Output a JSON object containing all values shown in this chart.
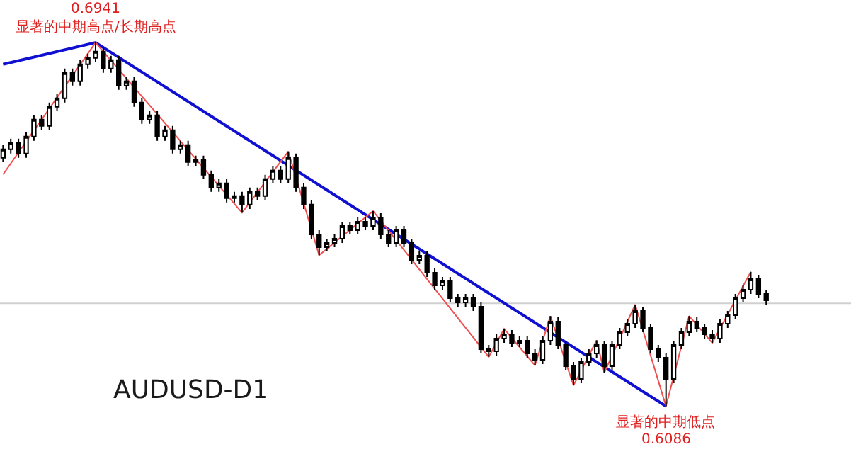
{
  "chart_data": {
    "type": "candlestick",
    "categories": [
      null,
      null,
      null,
      null,
      null,
      null,
      null,
      null,
      null,
      null,
      null,
      null,
      null,
      null,
      null,
      null,
      null,
      null,
      null,
      null,
      null,
      null,
      null,
      null,
      null,
      null,
      null,
      null,
      null,
      null,
      null,
      null,
      null,
      null,
      null,
      null,
      null,
      null,
      null,
      null,
      null,
      null,
      null,
      null,
      null,
      null,
      null,
      null,
      null,
      null,
      null,
      null,
      null,
      null,
      null,
      null,
      null,
      null,
      null,
      null,
      null,
      null,
      null,
      null,
      null,
      null,
      null,
      null,
      null,
      null,
      null,
      null,
      null,
      null,
      null,
      null,
      null,
      null,
      null,
      null,
      null,
      null,
      null,
      null,
      null,
      null,
      null,
      null,
      null,
      null,
      null,
      null,
      null,
      null,
      null,
      null,
      null,
      null,
      null,
      null
    ],
    "ylim": [
      0.5962,
      0.7041
    ],
    "tick_labels": false,
    "series": [
      {
        "color": "#000000",
        "ohlc": [
          [
            0.667,
            0.67,
            0.666,
            0.669
          ],
          [
            0.669,
            0.6715,
            0.668,
            0.6705
          ],
          [
            0.6705,
            0.6715,
            0.667,
            0.668
          ],
          [
            0.668,
            0.673,
            0.667,
            0.672
          ],
          [
            0.672,
            0.677,
            0.671,
            0.676
          ],
          [
            0.676,
            0.677,
            0.6735,
            0.6745
          ],
          [
            0.6745,
            0.68,
            0.6735,
            0.679
          ],
          [
            0.679,
            0.682,
            0.678,
            0.681
          ],
          [
            0.681,
            0.688,
            0.68,
            0.687
          ],
          [
            0.687,
            0.688,
            0.684,
            0.685
          ],
          [
            0.685,
            0.69,
            0.684,
            0.689
          ],
          [
            0.689,
            0.6915,
            0.688,
            0.6905
          ],
          [
            0.6905,
            0.6941,
            0.6895,
            0.692
          ],
          [
            0.692,
            0.693,
            0.687,
            0.688
          ],
          [
            0.688,
            0.691,
            0.687,
            0.69
          ],
          [
            0.69,
            0.691,
            0.683,
            0.684
          ],
          [
            0.684,
            0.686,
            0.683,
            0.685
          ],
          [
            0.685,
            0.686,
            0.679,
            0.68
          ],
          [
            0.68,
            0.681,
            0.675,
            0.676
          ],
          [
            0.676,
            0.678,
            0.675,
            0.677
          ],
          [
            0.677,
            0.678,
            0.671,
            0.672
          ],
          [
            0.672,
            0.6745,
            0.671,
            0.6735
          ],
          [
            0.6735,
            0.6745,
            0.668,
            0.669
          ],
          [
            0.669,
            0.671,
            0.668,
            0.67
          ],
          [
            0.67,
            0.671,
            0.665,
            0.666
          ],
          [
            0.666,
            0.6675,
            0.665,
            0.6665
          ],
          [
            0.6665,
            0.6675,
            0.662,
            0.663
          ],
          [
            0.663,
            0.664,
            0.659,
            0.66
          ],
          [
            0.66,
            0.662,
            0.659,
            0.661
          ],
          [
            0.661,
            0.662,
            0.6565,
            0.6575
          ],
          [
            0.6575,
            0.659,
            0.6565,
            0.658
          ],
          [
            0.658,
            0.659,
            0.6541,
            0.656
          ],
          [
            0.656,
            0.66,
            0.655,
            0.659
          ],
          [
            0.659,
            0.66,
            0.657,
            0.658
          ],
          [
            0.658,
            0.663,
            0.657,
            0.662
          ],
          [
            0.662,
            0.665,
            0.661,
            0.664
          ],
          [
            0.664,
            0.665,
            0.661,
            0.662
          ],
          [
            0.662,
            0.6685,
            0.661,
            0.667
          ],
          [
            0.667,
            0.668,
            0.659,
            0.66
          ],
          [
            0.66,
            0.661,
            0.655,
            0.656
          ],
          [
            0.656,
            0.657,
            0.648,
            0.649
          ],
          [
            0.649,
            0.65,
            0.6441,
            0.646
          ],
          [
            0.646,
            0.648,
            0.645,
            0.647
          ],
          [
            0.647,
            0.649,
            0.646,
            0.648
          ],
          [
            0.648,
            0.652,
            0.647,
            0.651
          ],
          [
            0.651,
            0.652,
            0.649,
            0.65
          ],
          [
            0.65,
            0.653,
            0.649,
            0.652
          ],
          [
            0.652,
            0.653,
            0.65,
            0.651
          ],
          [
            0.651,
            0.6545,
            0.65,
            0.653
          ],
          [
            0.653,
            0.654,
            0.648,
            0.649
          ],
          [
            0.649,
            0.65,
            0.646,
            0.647
          ],
          [
            0.647,
            0.651,
            0.646,
            0.65
          ],
          [
            0.65,
            0.651,
            0.646,
            0.647
          ],
          [
            0.647,
            0.648,
            0.642,
            0.643
          ],
          [
            0.643,
            0.645,
            0.642,
            0.644
          ],
          [
            0.644,
            0.645,
            0.639,
            0.64
          ],
          [
            0.64,
            0.641,
            0.636,
            0.637
          ],
          [
            0.637,
            0.639,
            0.636,
            0.638
          ],
          [
            0.638,
            0.639,
            0.633,
            0.634
          ],
          [
            0.634,
            0.635,
            0.632,
            0.633
          ],
          [
            0.633,
            0.635,
            0.632,
            0.634
          ],
          [
            0.634,
            0.635,
            0.631,
            0.632
          ],
          [
            0.632,
            0.633,
            0.621,
            0.622
          ],
          [
            0.622,
            0.623,
            0.6202,
            0.6215
          ],
          [
            0.6215,
            0.6255,
            0.6205,
            0.6245
          ],
          [
            0.6245,
            0.6268,
            0.6235,
            0.6255
          ],
          [
            0.6255,
            0.6265,
            0.6225,
            0.6235
          ],
          [
            0.6235,
            0.625,
            0.6225,
            0.624
          ],
          [
            0.624,
            0.625,
            0.62,
            0.621
          ],
          [
            0.621,
            0.622,
            0.6182,
            0.6195
          ],
          [
            0.6195,
            0.625,
            0.6185,
            0.624
          ],
          [
            0.624,
            0.6298,
            0.623,
            0.6285
          ],
          [
            0.6285,
            0.6295,
            0.622,
            0.623
          ],
          [
            0.623,
            0.624,
            0.617,
            0.618
          ],
          [
            0.618,
            0.619,
            0.6135,
            0.615
          ],
          [
            0.615,
            0.62,
            0.614,
            0.619
          ],
          [
            0.619,
            0.622,
            0.618,
            0.621
          ],
          [
            0.621,
            0.6241,
            0.62,
            0.623
          ],
          [
            0.623,
            0.624,
            0.6165,
            0.618
          ],
          [
            0.618,
            0.624,
            0.617,
            0.623
          ],
          [
            0.623,
            0.627,
            0.622,
            0.626
          ],
          [
            0.626,
            0.629,
            0.625,
            0.628
          ],
          [
            0.628,
            0.6325,
            0.627,
            0.631
          ],
          [
            0.631,
            0.632,
            0.626,
            0.627
          ],
          [
            0.627,
            0.628,
            0.621,
            0.622
          ],
          [
            0.622,
            0.623,
            0.619,
            0.62
          ],
          [
            0.62,
            0.621,
            0.6086,
            0.615
          ],
          [
            0.615,
            0.624,
            0.614,
            0.623
          ],
          [
            0.623,
            0.627,
            0.622,
            0.626
          ],
          [
            0.626,
            0.6298,
            0.625,
            0.6285
          ],
          [
            0.6285,
            0.6295,
            0.626,
            0.627
          ],
          [
            0.627,
            0.628,
            0.6245,
            0.6255
          ],
          [
            0.6255,
            0.6265,
            0.6235,
            0.6245
          ],
          [
            0.6245,
            0.629,
            0.6235,
            0.628
          ],
          [
            0.628,
            0.631,
            0.627,
            0.63
          ],
          [
            0.63,
            0.635,
            0.629,
            0.634
          ],
          [
            0.634,
            0.637,
            0.633,
            0.636
          ],
          [
            0.636,
            0.6402,
            0.635,
            0.6385
          ],
          [
            0.6385,
            0.6395,
            0.634,
            0.635
          ],
          [
            0.635,
            0.636,
            0.6325,
            0.6335
          ]
        ]
      },
      {
        "type": "line",
        "color": "#1010d0",
        "values": [
          0.689,
          null,
          null,
          null,
          null,
          null,
          null,
          null,
          null,
          null,
          null,
          null,
          0.6941,
          null,
          null,
          null,
          null,
          null,
          null,
          null,
          null,
          null,
          null,
          null,
          null,
          null,
          null,
          null,
          null,
          null,
          null,
          null,
          null,
          null,
          null,
          null,
          null,
          null,
          null,
          null,
          null,
          null,
          null,
          null,
          null,
          null,
          null,
          null,
          null,
          null,
          null,
          null,
          null,
          null,
          null,
          null,
          null,
          null,
          null,
          null,
          null,
          null,
          null,
          null,
          null,
          null,
          null,
          null,
          null,
          null,
          null,
          null,
          null,
          null,
          null,
          null,
          null,
          null,
          null,
          null,
          null,
          null,
          null,
          null,
          null,
          null,
          0.6086,
          null,
          null,
          null,
          null,
          null,
          null,
          null,
          null,
          null,
          null,
          null,
          null,
          null
        ]
      },
      {
        "type": "line",
        "color": "#f05050",
        "values": [
          0.6631,
          null,
          null,
          null,
          null,
          null,
          null,
          null,
          null,
          null,
          null,
          null,
          0.6941,
          null,
          null,
          null,
          null,
          null,
          null,
          null,
          null,
          null,
          null,
          null,
          null,
          null,
          null,
          null,
          null,
          null,
          null,
          0.6541,
          null,
          null,
          null,
          null,
          null,
          0.6685,
          null,
          null,
          null,
          0.6441,
          null,
          null,
          null,
          null,
          null,
          null,
          0.6545,
          null,
          null,
          null,
          null,
          null,
          null,
          null,
          null,
          null,
          null,
          null,
          null,
          null,
          null,
          0.6202,
          null,
          0.6268,
          null,
          null,
          null,
          0.6182,
          null,
          0.6298,
          null,
          null,
          0.6135,
          null,
          null,
          0.6241,
          0.6165,
          null,
          null,
          null,
          0.6325,
          null,
          null,
          null,
          0.6086,
          null,
          null,
          0.6298,
          null,
          null,
          0.6235,
          null,
          null,
          null,
          null,
          0.6402,
          null,
          null
        ]
      }
    ],
    "ref_lines": [
      {
        "axis": "y",
        "value": 0.6328,
        "color": "#d0d0d0"
      }
    ],
    "annotations": [
      {
        "text": "0.6941",
        "y": 0.6941
      },
      {
        "text": "显著的中期高点/长期高点",
        "y": 0.6941
      },
      {
        "text": "显著的中期低点",
        "y": 0.6086
      },
      {
        "text": "0.6086",
        "y": 0.6086
      },
      "AUDUSD-D1"
    ]
  }
}
